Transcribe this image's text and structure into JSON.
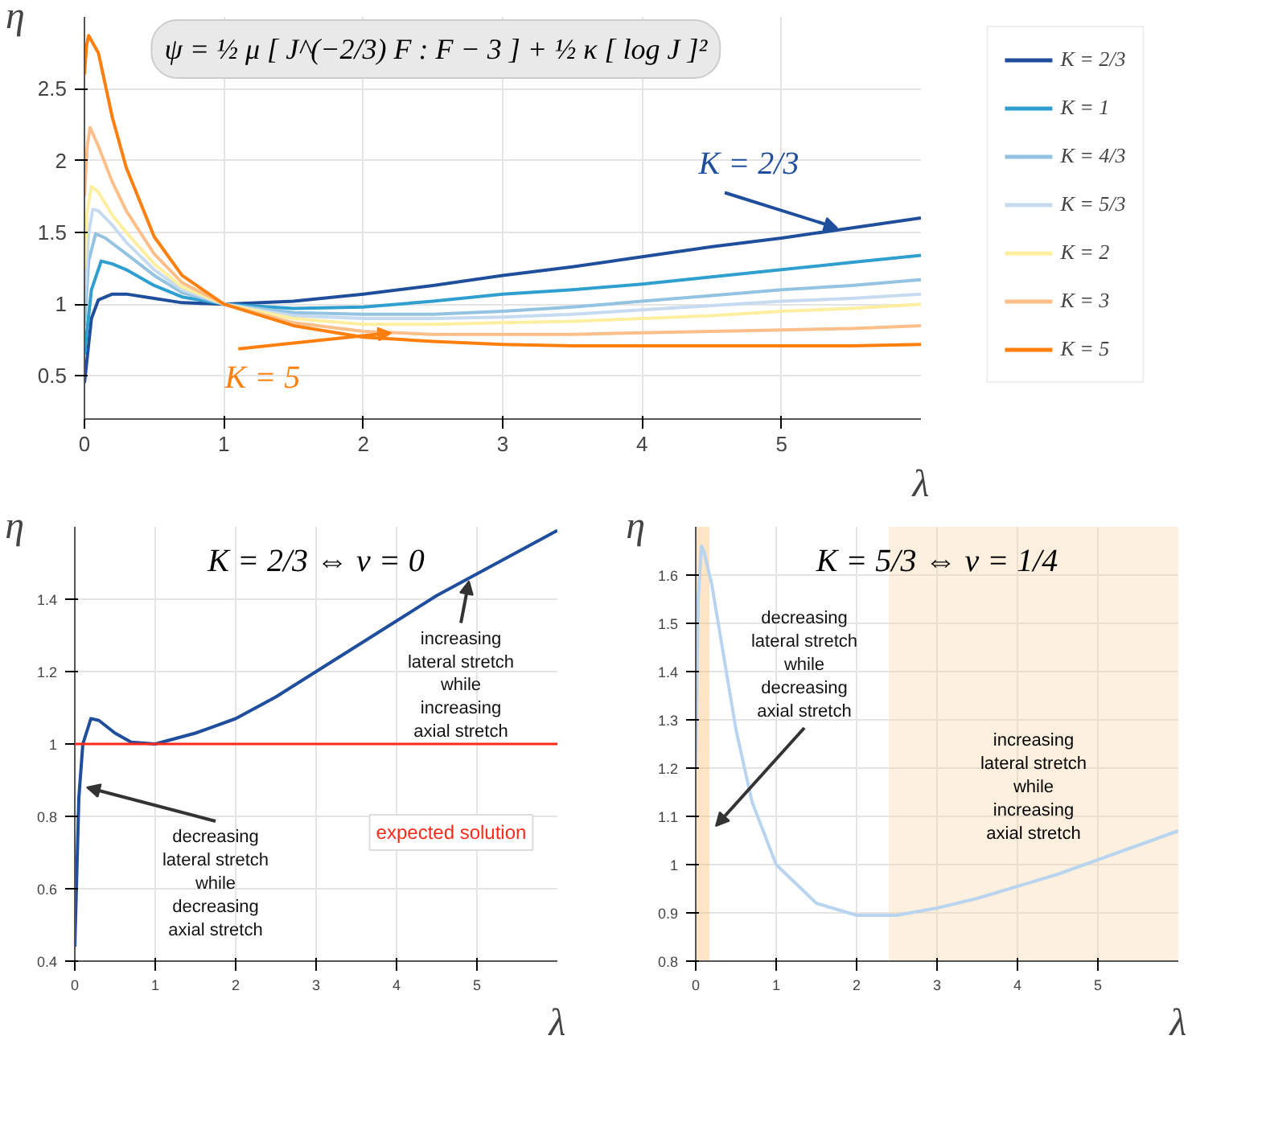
{
  "chart_data": [
    {
      "type": "line",
      "title": "ψ = ½ μ [ J^(−2/3) F : F − 3 ] + ½ κ [ log J ]²",
      "xlabel": "λ",
      "ylabel": "η",
      "xlim": [
        0,
        6
      ],
      "ylim": [
        0.2,
        3
      ],
      "xticks": [
        0,
        1,
        2,
        3,
        4,
        5
      ],
      "yticks": [
        0.5,
        1,
        1.5,
        2,
        2.5
      ],
      "grid": true,
      "legend": "right",
      "series": [
        {
          "name": "K = 2/3",
          "color": "#1f4e9c",
          "x": [
            0,
            0.05,
            0.1,
            0.2,
            0.3,
            0.5,
            0.7,
            1,
            1.5,
            2,
            2.5,
            3,
            3.5,
            4,
            4.5,
            5,
            5.5,
            6
          ],
          "values": [
            0.45,
            0.9,
            1.03,
            1.07,
            1.07,
            1.04,
            1.01,
            1.0,
            1.02,
            1.07,
            1.13,
            1.2,
            1.26,
            1.33,
            1.4,
            1.46,
            1.53,
            1.6
          ]
        },
        {
          "name": "K = 1",
          "color": "#2f9fd0",
          "x": [
            0,
            0.05,
            0.12,
            0.2,
            0.3,
            0.5,
            0.7,
            1,
            1.5,
            2,
            2.5,
            3,
            3.5,
            4,
            4.5,
            5,
            5.5,
            6
          ],
          "values": [
            0.65,
            1.1,
            1.3,
            1.28,
            1.24,
            1.13,
            1.05,
            1.0,
            0.97,
            0.98,
            1.02,
            1.07,
            1.1,
            1.14,
            1.19,
            1.24,
            1.29,
            1.34
          ]
        },
        {
          "name": "K = 4/3",
          "color": "#93c3e0",
          "x": [
            0,
            0.03,
            0.08,
            0.15,
            0.3,
            0.5,
            0.7,
            1,
            1.5,
            2,
            2.5,
            3,
            3.5,
            4,
            4.5,
            5,
            5.5,
            6
          ],
          "values": [
            0.85,
            1.3,
            1.49,
            1.46,
            1.35,
            1.2,
            1.08,
            1.0,
            0.94,
            0.93,
            0.93,
            0.95,
            0.98,
            1.02,
            1.06,
            1.1,
            1.13,
            1.17
          ]
        },
        {
          "name": "K = 5/3",
          "color": "#c6dbef",
          "x": [
            0,
            0.03,
            0.06,
            0.1,
            0.2,
            0.3,
            0.5,
            0.7,
            1,
            1.5,
            2,
            2.5,
            3,
            3.5,
            4,
            4.5,
            5,
            5.5,
            6
          ],
          "values": [
            1.0,
            1.5,
            1.66,
            1.65,
            1.55,
            1.43,
            1.24,
            1.1,
            1.0,
            0.92,
            0.9,
            0.9,
            0.91,
            0.93,
            0.96,
            0.99,
            1.02,
            1.04,
            1.07
          ]
        },
        {
          "name": "K = 2",
          "color": "#fdeea0",
          "x": [
            0,
            0.02,
            0.05,
            0.1,
            0.2,
            0.3,
            0.5,
            0.7,
            1,
            1.5,
            2,
            2.5,
            3,
            3.5,
            4,
            4.5,
            5,
            5.5,
            6
          ],
          "values": [
            1.25,
            1.65,
            1.82,
            1.78,
            1.62,
            1.5,
            1.28,
            1.12,
            1.0,
            0.9,
            0.86,
            0.86,
            0.87,
            0.88,
            0.9,
            0.92,
            0.95,
            0.97,
            1.0
          ]
        },
        {
          "name": "K = 3",
          "color": "#fdbf8a",
          "x": [
            0,
            0.02,
            0.04,
            0.1,
            0.2,
            0.3,
            0.5,
            0.7,
            1,
            1.5,
            2,
            2.5,
            3,
            3.5,
            4,
            4.5,
            5,
            5.5,
            6
          ],
          "values": [
            1.75,
            2.1,
            2.23,
            2.1,
            1.85,
            1.65,
            1.35,
            1.15,
            1.0,
            0.87,
            0.81,
            0.79,
            0.79,
            0.79,
            0.8,
            0.81,
            0.82,
            0.83,
            0.85
          ]
        },
        {
          "name": "K = 5",
          "color": "#ff7f0e",
          "x": [
            0,
            0.015,
            0.03,
            0.1,
            0.2,
            0.3,
            0.5,
            0.7,
            1,
            1.5,
            2,
            2.5,
            3,
            3.5,
            4,
            4.5,
            5,
            5.5,
            6
          ],
          "values": [
            2.6,
            2.8,
            2.87,
            2.75,
            2.3,
            1.95,
            1.47,
            1.2,
            1.0,
            0.85,
            0.77,
            0.74,
            0.72,
            0.71,
            0.71,
            0.71,
            0.71,
            0.71,
            0.72
          ]
        }
      ],
      "annotations": [
        {
          "text": "K = 2/3",
          "x": 5.4,
          "y": 1.53
        },
        {
          "text": "K = 5",
          "x": 2.2,
          "y": 0.8
        }
      ]
    },
    {
      "type": "line",
      "title": "K = 2/3 ⇔ ν = 0",
      "xlabel": "λ",
      "ylabel": "η",
      "xlim": [
        0,
        6
      ],
      "ylim": [
        0.4,
        1.6
      ],
      "xticks": [
        0,
        1,
        2,
        3,
        4,
        5
      ],
      "yticks": [
        0.4,
        0.6,
        0.8,
        1,
        1.2,
        1.4
      ],
      "grid": true,
      "series": [
        {
          "color": "#1f4e9c",
          "x": [
            0,
            0.05,
            0.1,
            0.2,
            0.3,
            0.5,
            0.7,
            1,
            1.5,
            2,
            2.5,
            3,
            3.5,
            4,
            4.5,
            5,
            5.5,
            6
          ],
          "values": [
            0.44,
            0.85,
            1.0,
            1.07,
            1.065,
            1.03,
            1.005,
            1.0,
            1.03,
            1.07,
            1.13,
            1.2,
            1.27,
            1.34,
            1.41,
            1.47,
            1.53,
            1.59
          ]
        }
      ],
      "ref_lines": [
        {
          "axis": "y",
          "value": 1,
          "label": "expected solution",
          "color": "#ff2a1a"
        }
      ],
      "annotations": [
        {
          "text": "increasing\nlateral stretch\nwhile\nincreasing\naxial stretch",
          "x": 4.9,
          "y": 1.45
        },
        {
          "text": "decreasing\nlateral stretch\nwhile\ndecreasing\naxial stretch",
          "x": 0.15,
          "y": 0.88
        }
      ]
    },
    {
      "type": "line",
      "title": "K = 5/3 ⇔ ν = 1/4",
      "xlabel": "λ",
      "ylabel": "η",
      "xlim": [
        0,
        6
      ],
      "ylim": [
        0.8,
        1.7
      ],
      "xticks": [
        0,
        1,
        2,
        3,
        4,
        5
      ],
      "yticks": [
        0.8,
        0.9,
        1,
        1.1,
        1.2,
        1.3,
        1.4,
        1.5,
        1.6
      ],
      "grid": true,
      "series": [
        {
          "color": "#b8d4ee",
          "x": [
            0,
            0.03,
            0.07,
            0.1,
            0.2,
            0.3,
            0.5,
            0.7,
            1,
            1.5,
            2,
            2.5,
            3,
            3.5,
            4,
            4.5,
            5,
            5.5,
            6
          ],
          "values": [
            1.2,
            1.55,
            1.66,
            1.65,
            1.58,
            1.48,
            1.28,
            1.13,
            1.0,
            0.92,
            0.895,
            0.895,
            0.91,
            0.93,
            0.955,
            0.98,
            1.01,
            1.04,
            1.07
          ]
        }
      ],
      "bands": [
        {
          "axis": "x",
          "from": 0,
          "to": 0.17,
          "color": "#fbb45c"
        },
        {
          "axis": "x",
          "from": 2.4,
          "to": 6,
          "label": "increasing\nlateral stretch\nwhile\nincreasing\naxial stretch",
          "color": "#fbd3a0"
        }
      ],
      "annotations": [
        {
          "text": "decreasing\nlateral stretch\nwhile\ndecreasing\naxial stretch",
          "x": 0.25,
          "y": 1.08
        }
      ]
    }
  ]
}
